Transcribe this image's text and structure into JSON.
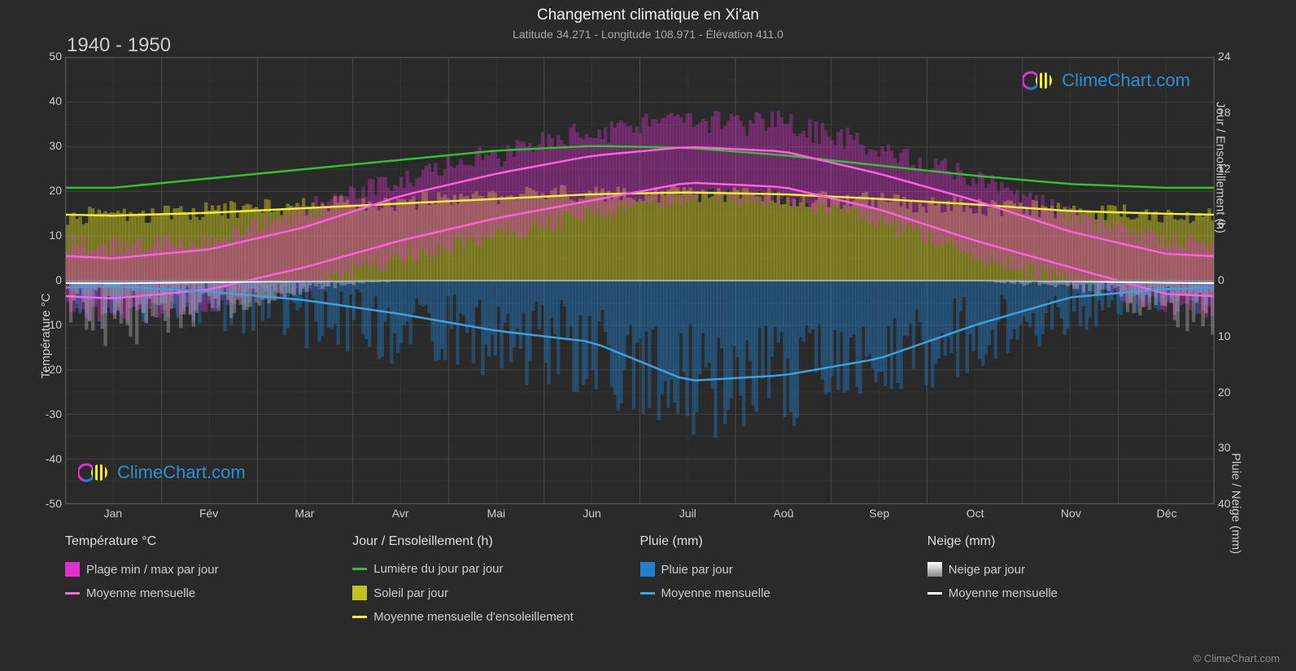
{
  "title": "Changement climatique en Xi'an",
  "subtitle": "Latitude 34.271 - Longitude 108.971 - Élévation 411.0",
  "year_range": "1940 - 1950",
  "copyright": "© ClimeChart.com",
  "watermark_text": "ClimeChart.com",
  "background_color": "#2a2a2a",
  "grid_color": "#4a4a4a",
  "text_color": "#cccccc",
  "chart": {
    "type": "climate-composite",
    "x_months": [
      "Jan",
      "Fév",
      "Mar",
      "Avr",
      "Mai",
      "Jun",
      "Juil",
      "Aoû",
      "Sep",
      "Oct",
      "Nov",
      "Déc"
    ],
    "y_left": {
      "label": "Température °C",
      "min": -50,
      "max": 50,
      "step": 10,
      "ticks": [
        -50,
        -40,
        -30,
        -20,
        -10,
        0,
        10,
        20,
        30,
        40,
        50
      ]
    },
    "y_right_top": {
      "label": "Jour / Ensoleillement (h)",
      "min": 0,
      "max": 24,
      "step": 6,
      "ticks": [
        0,
        6,
        12,
        18,
        24
      ]
    },
    "y_right_bottom": {
      "label": "Pluie / Neige (mm)",
      "min": 0,
      "max": 40,
      "step": 10,
      "ticks": [
        0,
        10,
        20,
        30,
        40
      ]
    },
    "series": {
      "temp_range": {
        "color": "#e030d0",
        "fill_opacity": 0.35,
        "max": [
          7,
          8,
          15,
          22,
          27,
          32,
          35,
          34,
          29,
          22,
          14,
          8
        ],
        "min": [
          -7,
          -5,
          0,
          6,
          11,
          16,
          20,
          19,
          14,
          7,
          0,
          -5
        ],
        "max_spread": [
          4,
          4,
          5,
          5,
          6,
          6,
          7,
          6,
          5,
          5,
          4,
          4
        ],
        "min_spread": [
          4,
          4,
          4,
          4,
          4,
          4,
          4,
          4,
          4,
          4,
          4,
          4
        ]
      },
      "temp_avg": {
        "color": "#ff60e0",
        "line_width": 2.5,
        "high": [
          5,
          7,
          12,
          19,
          24,
          28,
          30,
          29,
          24,
          18,
          11,
          6
        ],
        "low": [
          -4,
          -2,
          3,
          9,
          14,
          18,
          22,
          21,
          16,
          9,
          3,
          -3
        ]
      },
      "daylight": {
        "color": "#30c030",
        "line_width": 2.5,
        "values": [
          10,
          11,
          12,
          13,
          14,
          14.5,
          14.3,
          13.5,
          12.4,
          11.3,
          10.4,
          10
        ]
      },
      "sunshine_day": {
        "color": "#c0c020",
        "fill_opacity": 0.5,
        "values": [
          7,
          7.5,
          8,
          8.5,
          9,
          9.5,
          9.3,
          9,
          8.5,
          8,
          7.5,
          7
        ],
        "spread": [
          2,
          2,
          2,
          2,
          2,
          2,
          2,
          2,
          2,
          2,
          2,
          2
        ]
      },
      "sunshine_avg": {
        "color": "#f0f030",
        "line_width": 2.5,
        "values": [
          7,
          7.3,
          7.8,
          8.3,
          8.8,
          9.3,
          9.5,
          9.3,
          8.8,
          8.2,
          7.5,
          7.2
        ]
      },
      "rain_day": {
        "color": "#2080d0",
        "fill_opacity": 0.4,
        "values": [
          2,
          3,
          5,
          7,
          9,
          11,
          16,
          15,
          13,
          8,
          4,
          2
        ],
        "spread": [
          8,
          10,
          12,
          14,
          16,
          18,
          22,
          20,
          18,
          14,
          10,
          8
        ]
      },
      "rain_avg": {
        "color": "#40a0e0",
        "line_width": 2.5,
        "values": [
          1,
          2,
          3.5,
          6,
          9,
          11,
          18,
          17,
          14,
          8,
          3,
          1.5
        ]
      },
      "snow_day": {
        "color": "#e0e0e0",
        "fill_opacity": 0.3,
        "values": [
          3,
          2,
          0.5,
          0,
          0,
          0,
          0,
          0,
          0,
          0,
          0.5,
          2
        ]
      },
      "snow_avg": {
        "color": "#ffffff",
        "line_width": 2,
        "values": [
          0.5,
          0.3,
          0.1,
          0,
          0,
          0,
          0,
          0,
          0,
          0,
          0.1,
          0.4
        ]
      }
    }
  },
  "legend": {
    "col1_header": "Température °C",
    "col1_item1": "Plage min / max par jour",
    "col1_item2": "Moyenne mensuelle",
    "col2_header": "Jour / Ensoleillement (h)",
    "col2_item1": "Lumière du jour par jour",
    "col2_item2": "Soleil par jour",
    "col2_item3": "Moyenne mensuelle d'ensoleillement",
    "col3_header": "Pluie (mm)",
    "col3_item1": "Pluie par jour",
    "col3_item2": "Moyenne mensuelle",
    "col4_header": "Neige (mm)",
    "col4_item1": "Neige par jour",
    "col4_item2": "Moyenne mensuelle"
  },
  "colors": {
    "temp_range": "#e030d0",
    "temp_avg": "#ff60e0",
    "daylight": "#30c030",
    "sunshine_fill": "#c0c020",
    "sunshine_avg": "#f0f030",
    "rain_fill": "#2080d0",
    "rain_avg": "#40a0e0",
    "snow_fill": "#e0e0e0",
    "snow_avg": "#ffffff"
  }
}
